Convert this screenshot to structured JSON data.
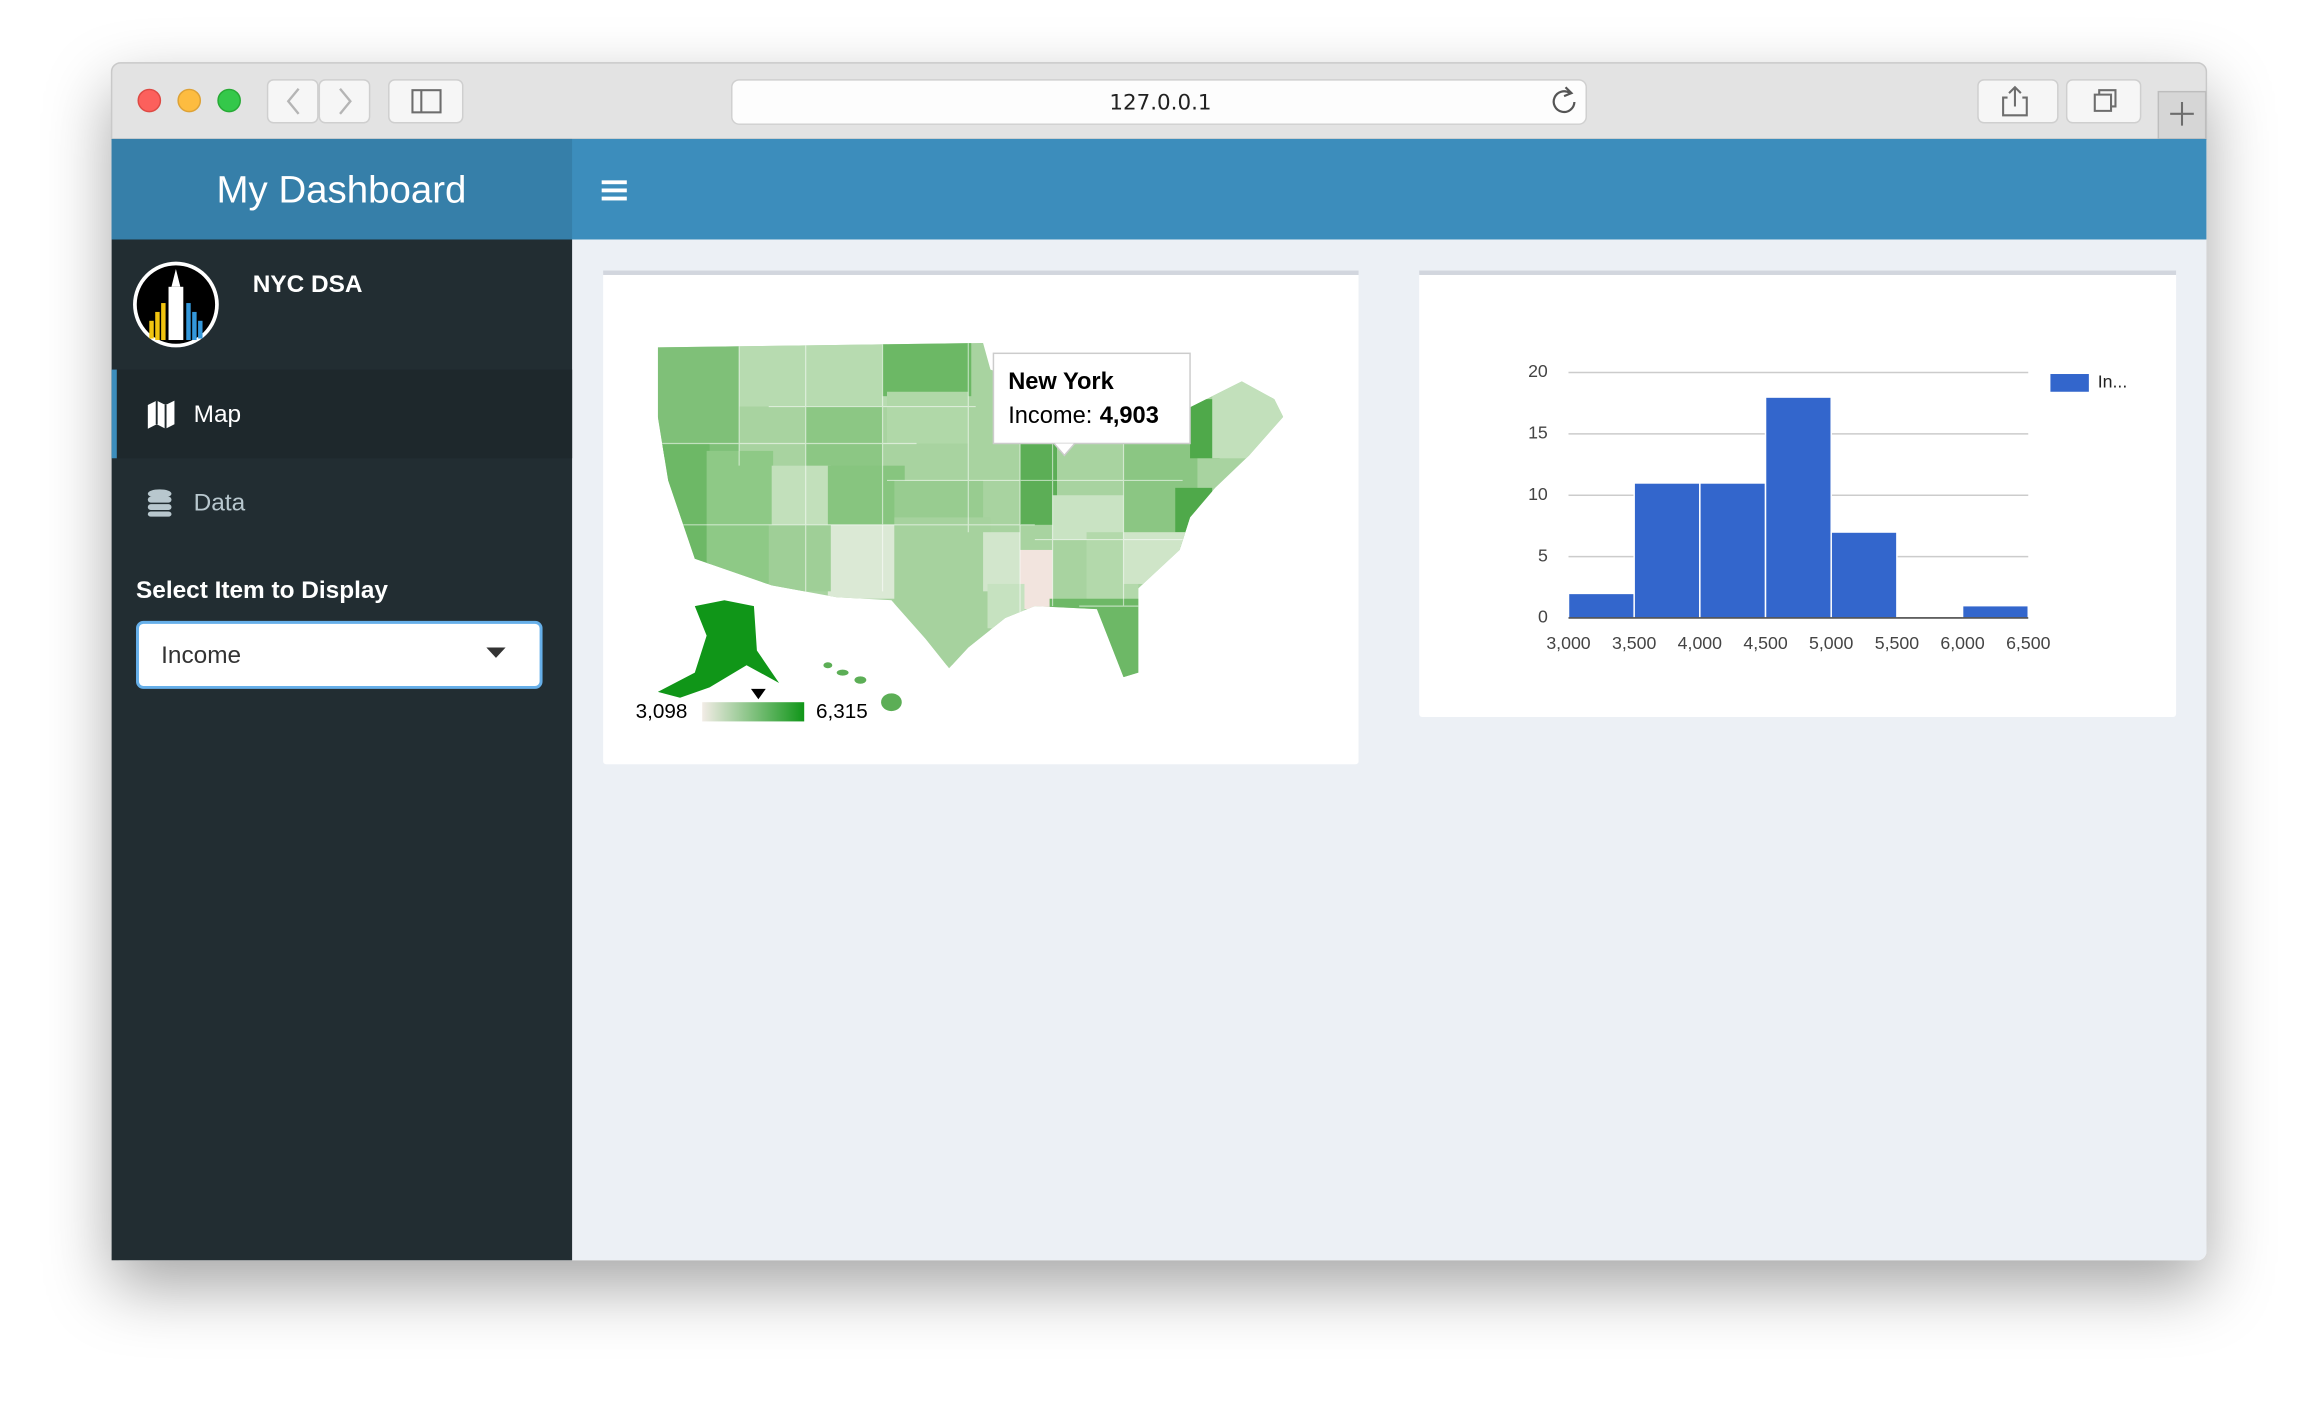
{
  "browser": {
    "url": "127.0.0.1"
  },
  "header": {
    "title": "My Dashboard"
  },
  "sidebar": {
    "user": "NYC DSA",
    "menu": [
      "Map",
      "Data"
    ],
    "select_label": "Select Item to Display",
    "select_value": "Income"
  },
  "map": {
    "tooltip": {
      "name": "New York",
      "label": "Income:",
      "value": "4,903"
    },
    "legend": {
      "min": "3,098",
      "max": "6,315"
    }
  },
  "chart_data": {
    "type": "histogram",
    "bins": [
      {
        "value": 3000,
        "label": "3,000"
      },
      {
        "value": 3500,
        "label": "3,500"
      },
      {
        "value": 4000,
        "label": "4,000"
      },
      {
        "value": 4500,
        "label": "4,500"
      },
      {
        "value": 5000,
        "label": "5,000"
      },
      {
        "value": 5500,
        "label": "5,500"
      },
      {
        "value": 6000,
        "label": "6,000"
      },
      {
        "value": 6500,
        "label": "6,500"
      }
    ],
    "series": [
      {
        "name": "In...",
        "color": "#3366cc",
        "values": [
          2,
          11,
          11,
          18,
          7,
          0,
          1
        ]
      }
    ],
    "xlim": [
      3000,
      6500
    ],
    "ylim": [
      0,
      20
    ],
    "yticks": [
      0,
      5,
      10,
      15,
      20
    ],
    "grid": true,
    "legend": "right"
  }
}
